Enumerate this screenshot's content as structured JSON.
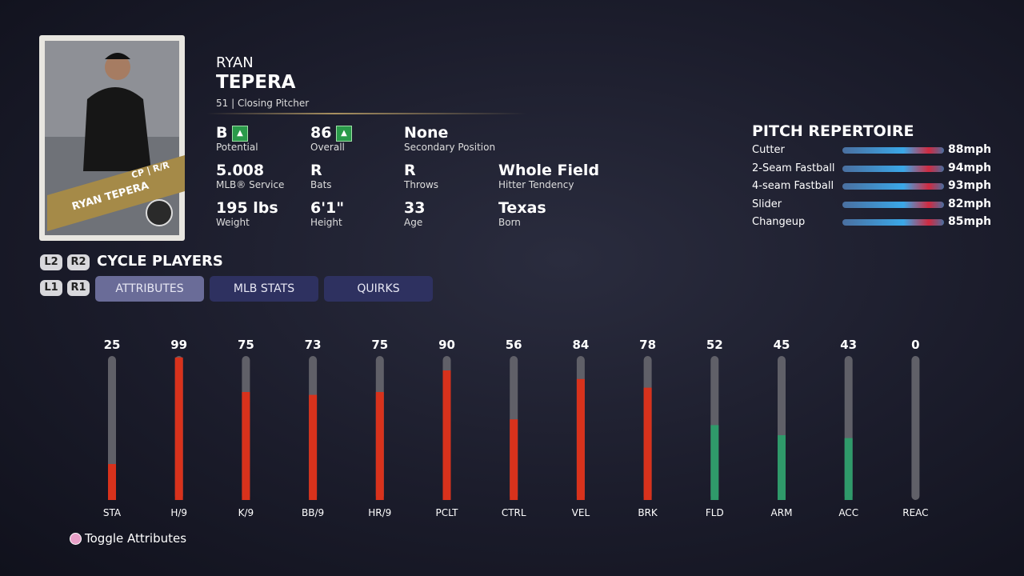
{
  "player": {
    "first_name": "RYAN",
    "last_name": "TEPERA",
    "subtitle": "51 | Closing Pitcher",
    "card_name": "RYAN TEPERA",
    "card_tag": "CP | R/R"
  },
  "info": [
    {
      "value": "B",
      "label": "Potential",
      "arrow": true
    },
    {
      "value": "86",
      "label": "Overall",
      "arrow": true
    },
    {
      "value": "None",
      "label": "Secondary Position"
    },
    {
      "value": "5.008",
      "label": "MLB® Service"
    },
    {
      "value": "R",
      "label": "Bats"
    },
    {
      "value": "R",
      "label": "Throws"
    },
    {
      "value": "Whole Field",
      "label": "Hitter Tendency"
    },
    {
      "value": "195 lbs",
      "label": "Weight"
    },
    {
      "value": "6'1\"",
      "label": "Height"
    },
    {
      "value": "33",
      "label": "Age"
    },
    {
      "value": "Texas",
      "label": "Born"
    }
  ],
  "pitches": {
    "title": "PITCH REPERTOIRE",
    "items": [
      {
        "name": "Cutter",
        "speed": "88mph"
      },
      {
        "name": "2-Seam Fastball",
        "speed": "94mph"
      },
      {
        "name": "4-seam Fastball",
        "speed": "93mph"
      },
      {
        "name": "Slider",
        "speed": "82mph"
      },
      {
        "name": "Changeup",
        "speed": "85mph"
      }
    ]
  },
  "cycle": {
    "buttons": [
      "L2",
      "R2"
    ],
    "label": "CYCLE PLAYERS"
  },
  "tabs": {
    "buttons": [
      "L1",
      "R1"
    ],
    "items": [
      "ATTRIBUTES",
      "MLB STATS",
      "QUIRKS"
    ],
    "active": 0
  },
  "attributes": {
    "labels": [
      "STA",
      "H/9",
      "K/9",
      "BB/9",
      "HR/9",
      "PCLT",
      "CTRL",
      "VEL",
      "BRK",
      "FLD",
      "ARM",
      "ACC",
      "REAC"
    ],
    "values": [
      25,
      99,
      75,
      73,
      75,
      90,
      56,
      84,
      78,
      52,
      45,
      43,
      0
    ],
    "colors": [
      "#d8321c",
      "#d8321c",
      "#d8321c",
      "#d8321c",
      "#d8321c",
      "#d8321c",
      "#d8321c",
      "#d8321c",
      "#d8321c",
      "#2f9a6a",
      "#2f9a6a",
      "#2f9a6a",
      "#2f9a6a"
    ],
    "ylim": [
      0,
      100
    ]
  },
  "footer": {
    "hint": "Toggle Attributes"
  }
}
